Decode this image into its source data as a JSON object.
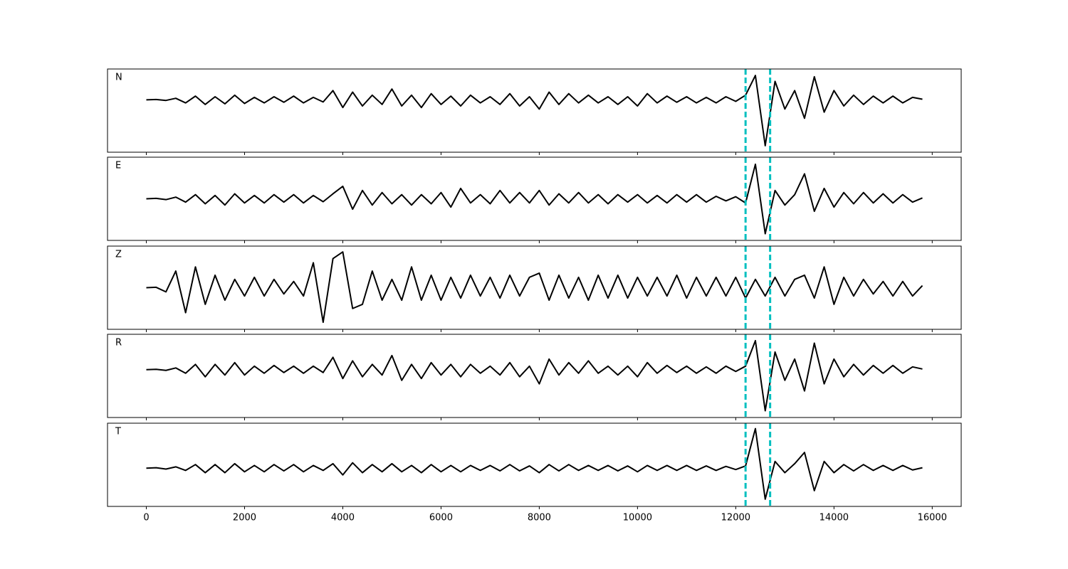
{
  "chart_data": [
    {
      "type": "line",
      "label": "N",
      "color": "#000000",
      "vlines": [
        12200,
        12700
      ],
      "vline_color": "#00bfbf",
      "xlim": [
        -790,
        16590
      ],
      "ylim": [
        -1.7,
        1
      ],
      "xticks": [
        0,
        2000,
        4000,
        6000,
        8000,
        10000,
        12000,
        14000,
        16000
      ],
      "x": [
        0,
        200,
        400,
        600,
        800,
        1000,
        1200,
        1400,
        1600,
        1800,
        2000,
        2200,
        2400,
        2600,
        2800,
        3000,
        3200,
        3400,
        3600,
        3800,
        4000,
        4200,
        4400,
        4600,
        4800,
        5000,
        5200,
        5400,
        5600,
        5800,
        6000,
        6200,
        6400,
        6600,
        6800,
        7000,
        7200,
        7400,
        7600,
        7800,
        8000,
        8200,
        8400,
        8600,
        8800,
        9000,
        9200,
        9400,
        9600,
        9800,
        10000,
        10200,
        10400,
        10600,
        10800,
        11000,
        11200,
        11400,
        11600,
        11800,
        12000,
        12200,
        12400,
        12600,
        12800,
        13000,
        13200,
        13400,
        13600,
        13800,
        14000,
        14200,
        14400,
        14600,
        14800,
        15000,
        15200,
        15400,
        15600,
        15800
      ],
      "values": [
        0,
        0.01,
        -0.02,
        0.05,
        -0.1,
        0.12,
        -0.15,
        0.1,
        -0.13,
        0.15,
        -0.12,
        0.08,
        -0.1,
        0.1,
        -0.08,
        0.12,
        -0.1,
        0.08,
        -0.07,
        0.3,
        -0.25,
        0.25,
        -0.2,
        0.15,
        -0.15,
        0.35,
        -0.2,
        0.15,
        -0.25,
        0.2,
        -0.15,
        0.12,
        -0.2,
        0.15,
        -0.1,
        0.1,
        -0.15,
        0.2,
        -0.2,
        0.1,
        -0.3,
        0.25,
        -0.15,
        0.2,
        -0.1,
        0.15,
        -0.1,
        0.1,
        -0.15,
        0.1,
        -0.2,
        0.2,
        -0.1,
        0.12,
        -0.08,
        0.1,
        -0.1,
        0.08,
        -0.1,
        0.1,
        -0.05,
        0.15,
        0.79,
        -1.49,
        0.6,
        -0.3,
        0.3,
        -0.6,
        0.75,
        -0.4,
        0.3,
        -0.2,
        0.15,
        -0.15,
        0.12,
        -0.1,
        0.12,
        -0.1,
        0.08,
        0.02
      ]
    },
    {
      "type": "line",
      "label": "E",
      "color": "#000000",
      "vlines": [
        12200,
        12700
      ],
      "vline_color": "#00bfbf",
      "xlim": [
        -790,
        16590
      ],
      "ylim": [
        -1,
        1
      ],
      "xticks": [
        0,
        2000,
        4000,
        6000,
        8000,
        10000,
        12000,
        14000,
        16000
      ],
      "x": [
        0,
        200,
        400,
        600,
        800,
        1000,
        1200,
        1400,
        1600,
        1800,
        2000,
        2200,
        2400,
        2600,
        2800,
        3000,
        3200,
        3400,
        3600,
        3800,
        4000,
        4200,
        4400,
        4600,
        4800,
        5000,
        5200,
        5400,
        5600,
        5800,
        6000,
        6200,
        6400,
        6600,
        6800,
        7000,
        7200,
        7400,
        7600,
        7800,
        8000,
        8200,
        8400,
        8600,
        8800,
        9000,
        9200,
        9400,
        9600,
        9800,
        10000,
        10200,
        10400,
        10600,
        10800,
        11000,
        11200,
        11400,
        11600,
        11800,
        12000,
        12200,
        12400,
        12600,
        12800,
        13000,
        13200,
        13400,
        13600,
        13800,
        14000,
        14200,
        14400,
        14600,
        14800,
        15000,
        15200,
        15400,
        15600,
        15800
      ],
      "values": [
        0,
        0.01,
        -0.02,
        0.04,
        -0.08,
        0.1,
        -0.12,
        0.08,
        -0.15,
        0.12,
        -0.1,
        0.08,
        -0.1,
        0.1,
        -0.08,
        0.1,
        -0.1,
        0.08,
        -0.07,
        0.12,
        0.3,
        -0.25,
        0.2,
        -0.15,
        0.15,
        -0.12,
        0.1,
        -0.15,
        0.1,
        -0.12,
        0.15,
        -0.2,
        0.25,
        -0.1,
        0.1,
        -0.12,
        0.2,
        -0.1,
        0.15,
        -0.1,
        0.2,
        -0.15,
        0.12,
        -0.1,
        0.15,
        -0.1,
        0.1,
        -0.12,
        0.1,
        -0.08,
        0.1,
        -0.1,
        0.08,
        -0.1,
        0.1,
        -0.08,
        0.1,
        -0.08,
        0.06,
        -0.05,
        0.05,
        -0.1,
        0.83,
        -0.84,
        0.2,
        -0.15,
        0.1,
        0.6,
        -0.3,
        0.25,
        -0.2,
        0.15,
        -0.12,
        0.15,
        -0.1,
        0.12,
        -0.1,
        0.1,
        -0.08,
        0.02
      ]
    },
    {
      "type": "line",
      "label": "Z",
      "color": "#000000",
      "vlines": [
        12200,
        12700
      ],
      "vline_color": "#00bfbf",
      "xlim": [
        -790,
        16590
      ],
      "ylim": [
        -1,
        1
      ],
      "xticks": [
        0,
        2000,
        4000,
        6000,
        8000,
        10000,
        12000,
        14000,
        16000
      ],
      "x": [
        0,
        200,
        400,
        600,
        800,
        1000,
        1200,
        1400,
        1600,
        1800,
        2000,
        2200,
        2400,
        2600,
        2800,
        3000,
        3200,
        3400,
        3600,
        3800,
        4000,
        4200,
        4400,
        4600,
        4800,
        5000,
        5200,
        5400,
        5600,
        5800,
        6000,
        6200,
        6400,
        6600,
        6800,
        7000,
        7200,
        7400,
        7600,
        7800,
        8000,
        8200,
        8400,
        8600,
        8800,
        9000,
        9200,
        9400,
        9600,
        9800,
        10000,
        10200,
        10400,
        10600,
        10800,
        11000,
        11200,
        11400,
        11600,
        11800,
        12000,
        12200,
        12400,
        12600,
        12800,
        13000,
        13200,
        13400,
        13600,
        13800,
        14000,
        14200,
        14400,
        14600,
        14800,
        15000,
        15200,
        15400,
        15600,
        15800
      ],
      "values": [
        0,
        0.01,
        -0.1,
        0.4,
        -0.6,
        0.5,
        -0.4,
        0.3,
        -0.3,
        0.2,
        -0.2,
        0.25,
        -0.2,
        0.2,
        -0.15,
        0.15,
        -0.2,
        0.6,
        -0.83,
        0.7,
        0.86,
        -0.5,
        -0.4,
        0.4,
        -0.3,
        0.2,
        -0.3,
        0.5,
        -0.3,
        0.3,
        -0.3,
        0.25,
        -0.25,
        0.3,
        -0.2,
        0.25,
        -0.25,
        0.3,
        -0.2,
        0.25,
        0.35,
        -0.3,
        0.3,
        -0.25,
        0.25,
        -0.3,
        0.3,
        -0.25,
        0.3,
        -0.25,
        0.25,
        -0.2,
        0.25,
        -0.2,
        0.3,
        -0.25,
        0.25,
        -0.2,
        0.25,
        -0.2,
        0.25,
        -0.25,
        0.2,
        -0.2,
        0.25,
        -0.2,
        0.2,
        0.3,
        -0.25,
        0.5,
        -0.4,
        0.25,
        -0.2,
        0.2,
        -0.15,
        0.15,
        -0.2,
        0.15,
        -0.2,
        0.05
      ]
    },
    {
      "type": "line",
      "label": "R",
      "color": "#000000",
      "vlines": [
        12200,
        12700
      ],
      "vline_color": "#00bfbf",
      "xlim": [
        -790,
        16590
      ],
      "ylim": [
        -1.35,
        1
      ],
      "xticks": [
        0,
        2000,
        4000,
        6000,
        8000,
        10000,
        12000,
        14000,
        16000
      ],
      "x": [
        0,
        200,
        400,
        600,
        800,
        1000,
        1200,
        1400,
        1600,
        1800,
        2000,
        2200,
        2400,
        2600,
        2800,
        3000,
        3200,
        3400,
        3600,
        3800,
        4000,
        4200,
        4400,
        4600,
        4800,
        5000,
        5200,
        5400,
        5600,
        5800,
        6000,
        6200,
        6400,
        6600,
        6800,
        7000,
        7200,
        7400,
        7600,
        7800,
        8000,
        8200,
        8400,
        8600,
        8800,
        9000,
        9200,
        9400,
        9600,
        9800,
        10000,
        10200,
        10400,
        10600,
        10800,
        11000,
        11200,
        11400,
        11600,
        11800,
        12000,
        12200,
        12400,
        12600,
        12800,
        13000,
        13200,
        13400,
        13600,
        13800,
        14000,
        14200,
        14400,
        14600,
        14800,
        15000,
        15200,
        15400,
        15600,
        15800
      ],
      "values": [
        0,
        0.01,
        -0.02,
        0.05,
        -0.1,
        0.15,
        -0.2,
        0.15,
        -0.15,
        0.2,
        -0.15,
        0.1,
        -0.1,
        0.12,
        -0.08,
        0.1,
        -0.1,
        0.1,
        -0.08,
        0.35,
        -0.25,
        0.25,
        -0.2,
        0.15,
        -0.15,
        0.4,
        -0.3,
        0.15,
        -0.25,
        0.2,
        -0.15,
        0.15,
        -0.2,
        0.15,
        -0.1,
        0.1,
        -0.15,
        0.2,
        -0.2,
        0.1,
        -0.4,
        0.3,
        -0.15,
        0.2,
        -0.1,
        0.25,
        -0.1,
        0.1,
        -0.15,
        0.1,
        -0.2,
        0.2,
        -0.1,
        0.12,
        -0.08,
        0.1,
        -0.1,
        0.08,
        -0.1,
        0.1,
        -0.05,
        0.1,
        0.82,
        -1.16,
        0.5,
        -0.3,
        0.3,
        -0.6,
        0.75,
        -0.4,
        0.3,
        -0.2,
        0.15,
        -0.15,
        0.12,
        -0.1,
        0.12,
        -0.1,
        0.08,
        0.02
      ]
    },
    {
      "type": "line",
      "label": "T",
      "color": "#000000",
      "vlines": [
        12200,
        12700
      ],
      "vline_color": "#00bfbf",
      "xlim": [
        -790,
        16590
      ],
      "ylim": [
        -0.85,
        1
      ],
      "xticks": [
        0,
        2000,
        4000,
        6000,
        8000,
        10000,
        12000,
        14000,
        16000
      ],
      "x": [
        0,
        200,
        400,
        600,
        800,
        1000,
        1200,
        1400,
        1600,
        1800,
        2000,
        2200,
        2400,
        2600,
        2800,
        3000,
        3200,
        3400,
        3600,
        3800,
        4000,
        4200,
        4400,
        4600,
        4800,
        5000,
        5200,
        5400,
        5600,
        5800,
        6000,
        6200,
        6400,
        6600,
        6800,
        7000,
        7200,
        7400,
        7600,
        7800,
        8000,
        8200,
        8400,
        8600,
        8800,
        9000,
        9200,
        9400,
        9600,
        9800,
        10000,
        10200,
        10400,
        10600,
        10800,
        11000,
        11200,
        11400,
        11600,
        11800,
        12000,
        12200,
        12400,
        12600,
        12800,
        13000,
        13200,
        13400,
        13600,
        13800,
        14000,
        14200,
        14400,
        14600,
        14800,
        15000,
        15200,
        15400,
        15600,
        15800
      ],
      "values": [
        0,
        0.01,
        -0.02,
        0.03,
        -0.05,
        0.08,
        -0.1,
        0.08,
        -0.1,
        0.1,
        -0.08,
        0.06,
        -0.08,
        0.08,
        -0.06,
        0.08,
        -0.08,
        0.06,
        -0.05,
        0.1,
        -0.15,
        0.12,
        -0.1,
        0.08,
        -0.08,
        0.1,
        -0.08,
        0.06,
        -0.1,
        0.08,
        -0.08,
        0.06,
        -0.08,
        0.06,
        -0.05,
        0.06,
        -0.06,
        0.08,
        -0.06,
        0.05,
        -0.1,
        0.08,
        -0.06,
        0.08,
        -0.05,
        0.06,
        -0.05,
        0.06,
        -0.06,
        0.05,
        -0.08,
        0.06,
        -0.05,
        0.06,
        -0.05,
        0.06,
        -0.05,
        0.05,
        -0.05,
        0.04,
        -0.03,
        0.05,
        0.88,
        -0.69,
        0.15,
        -0.1,
        0.1,
        0.35,
        -0.5,
        0.15,
        -0.1,
        0.08,
        -0.06,
        0.08,
        -0.05,
        0.06,
        -0.05,
        0.06,
        -0.04,
        0.01
      ]
    }
  ]
}
